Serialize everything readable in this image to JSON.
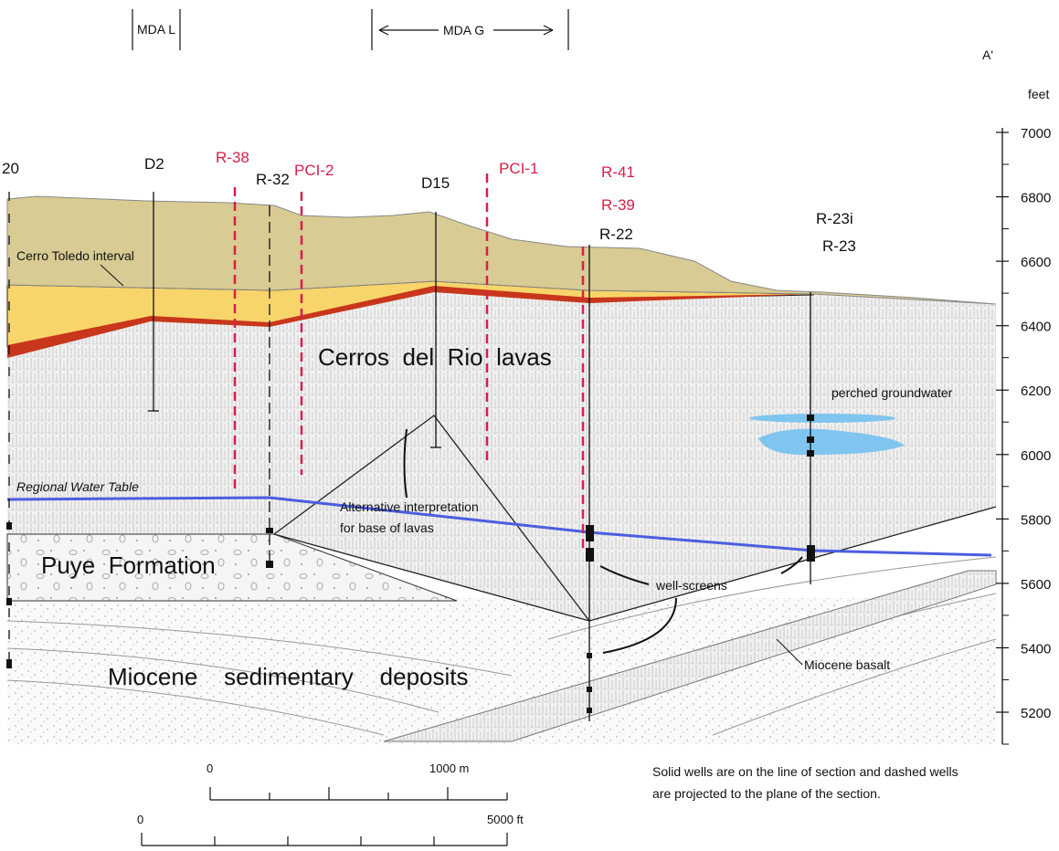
{
  "header": {
    "mda_l": "MDA L",
    "mda_g": "MDA G",
    "section_end": "A'"
  },
  "elevation_axis": {
    "unit": "feet",
    "ticks": [
      7000,
      6800,
      6600,
      6400,
      6200,
      6000,
      5800,
      5600,
      5400,
      5200
    ]
  },
  "wells": {
    "r20": "20",
    "d2": "D2",
    "r38": "R-38",
    "r32": "R-32",
    "pci2": "PCI-2",
    "d15": "D15",
    "pci1": "PCI-1",
    "r41": "R-41",
    "r39": "R-39",
    "r22": "R-22",
    "r23i": "R-23i",
    "r23": "R-23"
  },
  "units": {
    "cerro_toledo": "Cerro Toledo interval",
    "cerros_del_rio": "Cerros  del  Rio  lavas",
    "puye": "Puye  Formation",
    "miocene": "Miocene    sedimentary    deposits",
    "miocene_basalt": "Miocene basalt",
    "perched": "perched groundwater"
  },
  "annotations": {
    "water_table": "Regional Water Table",
    "alt_1": "Alternative interpretation",
    "alt_2": "for base of lavas",
    "screens": "well-screens"
  },
  "scale_bars": {
    "m_zero": "0",
    "m_end": "1000 m",
    "ft_zero": "0",
    "ft_end": "5000 ft"
  },
  "note": [
    "Solid wells are on the line of section and dashed wells",
    "are projected to the plane of the section."
  ]
}
